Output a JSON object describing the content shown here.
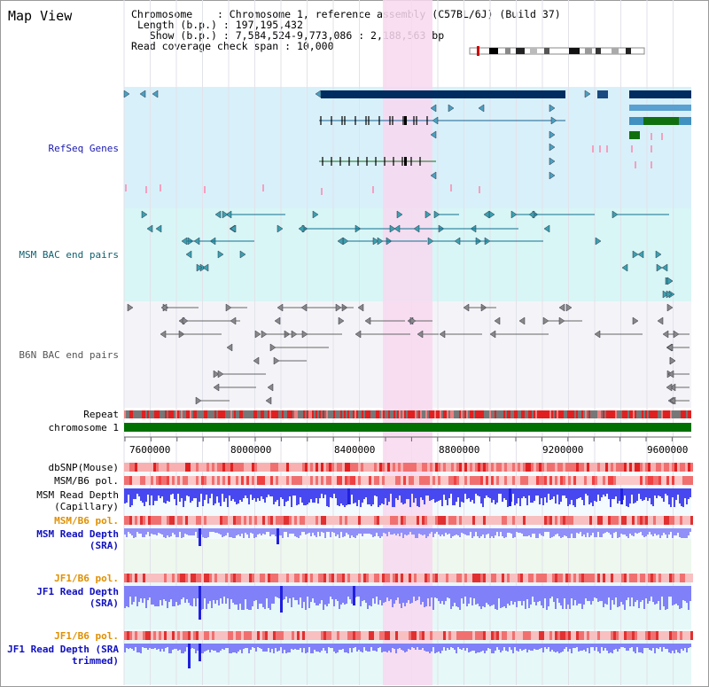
{
  "title": "Map View",
  "info": {
    "chromosome_key": "Chromosome",
    "chromosome_val": "Chromosome 1, reference assembly (C57BL/6J) (Build 37)",
    "length_key": "Length (b.p.)",
    "length_val": "197,195,432",
    "show_key": "Show (b.p.)",
    "show_val": "7,584,524-9,773,086 : 2,188,563 bp",
    "coverage_key": "Read coverage check span",
    "coverage_val": "10,000"
  },
  "tracks": {
    "refseq": "RefSeq Genes",
    "msm_bac": "MSM BAC end pairs",
    "b6n_bac": "B6N BAC end pairs",
    "repeat": "Repeat",
    "chromosome": "chromosome 1",
    "dbsnp": "dbSNP(Mouse)",
    "msm_pol1": "MSM/B6 pol.",
    "msm_depth_cap": "MSM Read Depth (Capillary)",
    "msm_pol2": "MSM/B6 pol.",
    "msm_depth_sra": "MSM Read Depth (SRA)",
    "jf1_pol1": "JF1/B6 pol.",
    "jf1_depth_sra": "JF1 Read Depth (SRA)",
    "jf1_pol2": "JF1/B6 pol.",
    "jf1_depth_trim": "JF1 Read Depth (SRA trimmed)"
  },
  "ruler": {
    "ticks": [
      "7600000",
      "8000000",
      "8400000",
      "8800000",
      "9200000",
      "9600000"
    ]
  },
  "colors": {
    "refseq_label": "#1a1ab0",
    "msm_label": "#106070",
    "b6n_label": "#555555",
    "orange_label": "#e09000",
    "blue_label": "#1010c0",
    "highlight": "#f8d8f0",
    "chromosome_bar": "#007000"
  }
}
